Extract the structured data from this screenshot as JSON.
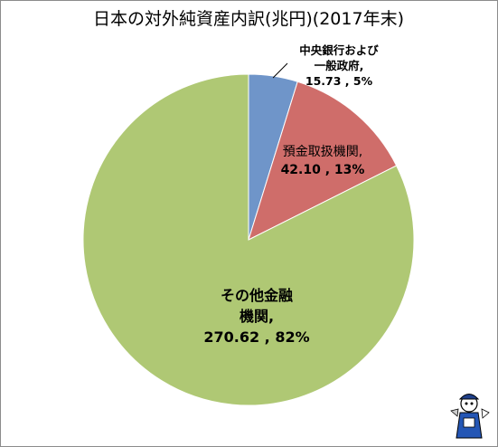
{
  "chart_data": {
    "type": "pie",
    "title": "日本の対外純資産内訳(兆円)(2017年末)",
    "slices": [
      {
        "name": "中央銀行および一般政府",
        "label_lines": [
          "中央銀行および",
          "一般政府,",
          "15.73 , 5%"
        ],
        "value": 15.73,
        "percent": 5,
        "color": "#6f95c9"
      },
      {
        "name": "預金取扱機関",
        "label_lines": [
          "預金取扱機関,",
          "42.10 , 13%"
        ],
        "value": 42.1,
        "percent": 13,
        "color": "#cf6d6a"
      },
      {
        "name": "その他金融機関",
        "label_lines": [
          "その他金融",
          "機関,",
          "270.62 , 82%"
        ],
        "value": 270.62,
        "percent": 82,
        "color": "#afc874"
      }
    ]
  },
  "icons": {
    "watermark": "mascot-icon"
  }
}
